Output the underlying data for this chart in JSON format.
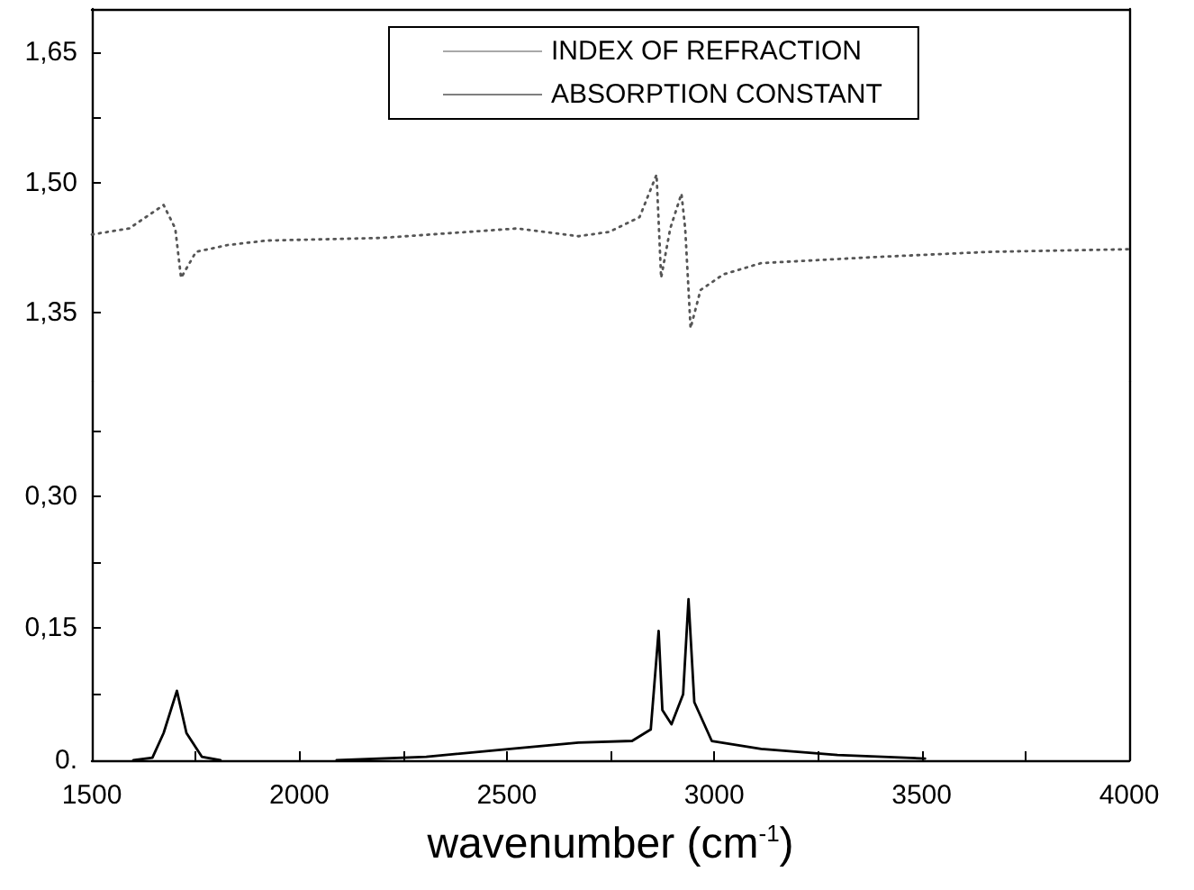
{
  "chart_data": [
    {
      "type": "line",
      "xlim": [
        1500,
        4000
      ],
      "ylim": [
        1.27,
        1.7
      ],
      "yticks": [
        {
          "value": 1.35,
          "label": "1,35"
        },
        {
          "value": 1.5,
          "label": "1,50"
        },
        {
          "value": 1.575,
          "label": null
        },
        {
          "value": 1.65,
          "label": "1,65"
        }
      ],
      "tick_labels": "y",
      "grid": false,
      "legend": "top right",
      "marker": "none",
      "series": [
        {
          "name": "INDEX OF REFRACTION",
          "color": "#555555",
          "line_style": "dotted",
          "x": [
            1500,
            1590,
            1673,
            1701,
            1715,
            1751,
            1829,
            1921,
            2196,
            2526,
            2672,
            2747,
            2820,
            2861,
            2872,
            2894,
            2921,
            2930,
            2943,
            2967,
            3022,
            3113,
            3388,
            3664,
            4000
          ],
          "values": [
            1.44,
            1.447,
            1.474,
            1.447,
            1.39,
            1.42,
            1.428,
            1.433,
            1.436,
            1.447,
            1.438,
            1.443,
            1.46,
            1.509,
            1.39,
            1.447,
            1.487,
            1.447,
            1.332,
            1.376,
            1.394,
            1.407,
            1.414,
            1.42,
            1.423
          ]
        }
      ]
    },
    {
      "type": "line",
      "xlabel": "wavenumber (cm$^{-1}$)",
      "xlim": [
        1500,
        4000
      ],
      "xticks": [
        1500,
        {
          "value": 1750,
          "label": null
        },
        2000,
        {
          "value": 2250,
          "label": null
        },
        2500,
        {
          "value": 2750,
          "label": null
        },
        3000,
        {
          "value": 3250,
          "label": null
        },
        3500,
        {
          "value": 3750,
          "label": null
        },
        4000
      ],
      "ylim": [
        0,
        0.43
      ],
      "yticks": [
        {
          "value": 0,
          "label": "0."
        },
        {
          "value": 0.075,
          "label": null
        },
        {
          "value": 0.15,
          "label": "0,15"
        },
        {
          "value": 0.225,
          "label": null
        },
        {
          "value": 0.3,
          "label": "0,30"
        },
        {
          "value": 0.375,
          "label": null
        }
      ],
      "grid": false,
      "legend": "top right",
      "marker": "none",
      "series": [
        {
          "name": "ABSORPTION CONSTANT",
          "color": "#000000",
          "line_style": "solid",
          "x": [
            1600,
            1646,
            1673,
            1705,
            1728,
            1765,
            1810,
            1950,
            2090,
            2306,
            2508,
            2673,
            2802,
            2847,
            2866,
            2875,
            2897,
            2925,
            2938,
            2952,
            2994,
            3113,
            3297,
            3508
          ],
          "values": [
            0,
            0.003,
            0.031,
            0.079,
            0.031,
            0.004,
            0,
            null,
            0,
            0.004,
            0.013,
            0.02,
            0.022,
            0.035,
            0.147,
            0.057,
            0.041,
            0.075,
            0.183,
            0.066,
            0.022,
            0.013,
            0.006,
            0.002
          ]
        }
      ]
    }
  ]
}
